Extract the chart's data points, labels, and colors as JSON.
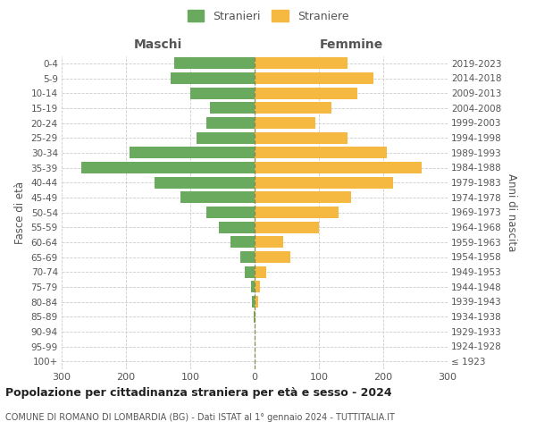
{
  "age_groups": [
    "100+",
    "95-99",
    "90-94",
    "85-89",
    "80-84",
    "75-79",
    "70-74",
    "65-69",
    "60-64",
    "55-59",
    "50-54",
    "45-49",
    "40-44",
    "35-39",
    "30-34",
    "25-29",
    "20-24",
    "15-19",
    "10-14",
    "5-9",
    "0-4"
  ],
  "birth_years": [
    "≤ 1923",
    "1924-1928",
    "1929-1933",
    "1934-1938",
    "1939-1943",
    "1944-1948",
    "1949-1953",
    "1954-1958",
    "1959-1963",
    "1964-1968",
    "1969-1973",
    "1974-1978",
    "1979-1983",
    "1984-1988",
    "1989-1993",
    "1994-1998",
    "1999-2003",
    "2004-2008",
    "2009-2013",
    "2014-2018",
    "2019-2023"
  ],
  "maschi": [
    0,
    0,
    0,
    2,
    4,
    5,
    15,
    22,
    38,
    55,
    75,
    115,
    155,
    270,
    195,
    90,
    75,
    70,
    100,
    130,
    125
  ],
  "femmine": [
    0,
    0,
    0,
    2,
    6,
    8,
    18,
    55,
    45,
    100,
    130,
    150,
    215,
    260,
    205,
    145,
    95,
    120,
    160,
    185,
    145
  ],
  "maschi_color": "#6aaa5e",
  "femmine_color": "#f5b942",
  "title": "Popolazione per cittadinanza straniera per età e sesso - 2024",
  "subtitle": "COMUNE DI ROMANO DI LOMBARDIA (BG) - Dati ISTAT al 1° gennaio 2024 - TUTTITALIA.IT",
  "xlabel_left": "Maschi",
  "xlabel_right": "Femmine",
  "ylabel_left": "Fasce di età",
  "ylabel_right": "Anni di nascita",
  "legend_maschi": "Stranieri",
  "legend_femmine": "Straniere",
  "xlim": 300,
  "background_color": "#ffffff",
  "grid_color": "#cccccc",
  "text_color": "#555555"
}
